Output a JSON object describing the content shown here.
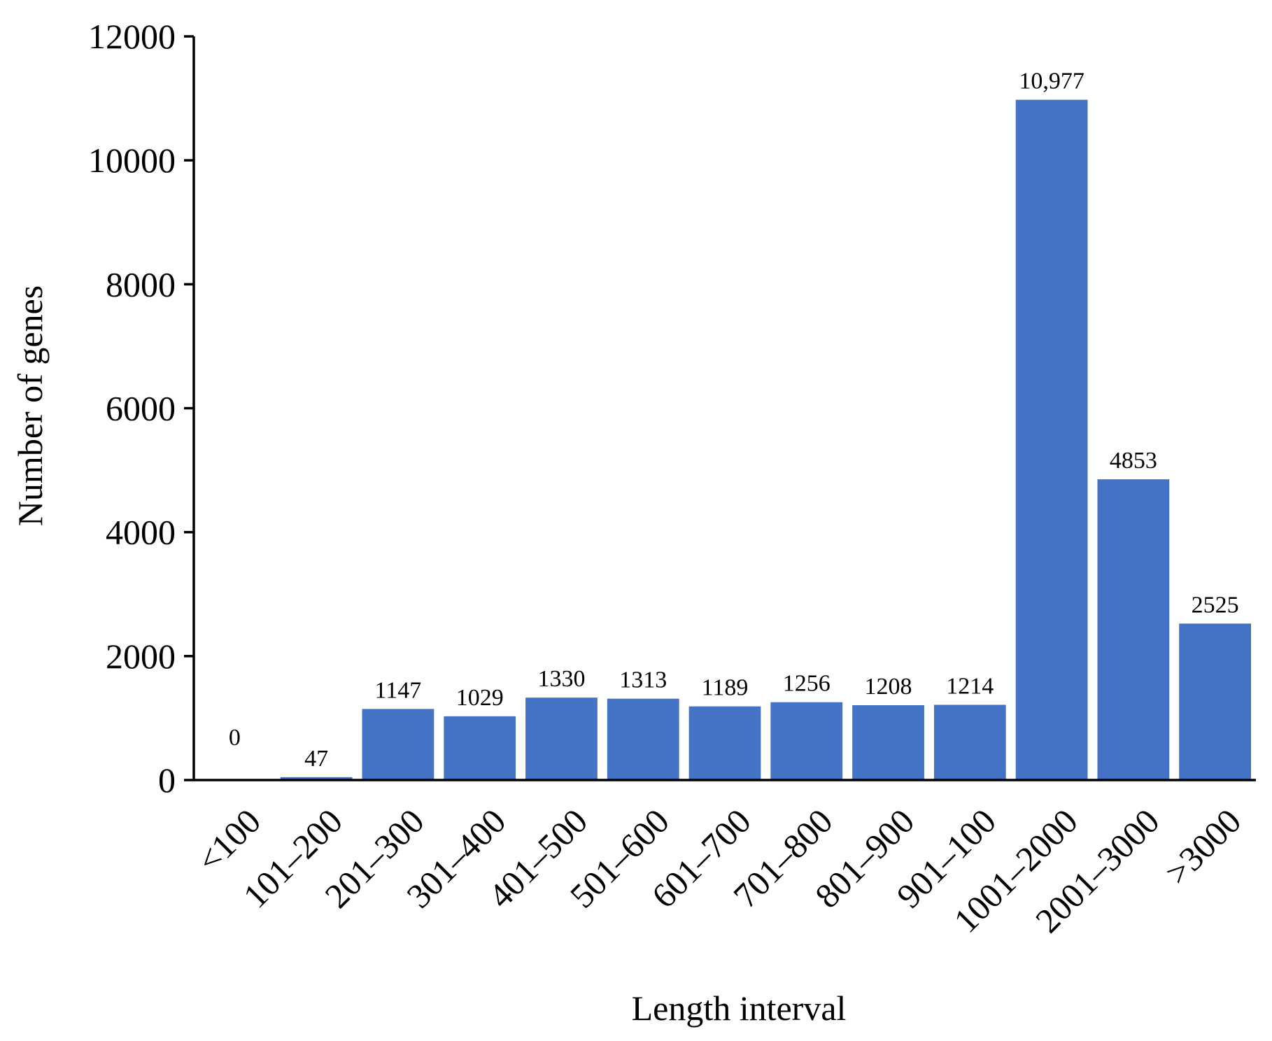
{
  "chart_data": {
    "type": "bar",
    "xlabel": "Length interval",
    "ylabel": "Number of genes",
    "ylim": [
      0,
      12000
    ],
    "yticks": [
      "0",
      "2000",
      "4000",
      "6000",
      "8000",
      "10000",
      "12000"
    ],
    "grid": false,
    "legend": "none",
    "bar_color": "#4472C4",
    "categories": [
      "<100",
      "101–200",
      "201–300",
      "301–400",
      "401–500",
      "501–600",
      "601–700",
      "701–800",
      "801–900",
      "901–100",
      "1001–2000",
      "2001–3000",
      ">3000"
    ],
    "values": [
      0,
      47,
      1147,
      1029,
      1330,
      1313,
      1189,
      1256,
      1208,
      1214,
      10977,
      4853,
      2525
    ],
    "data_labels": [
      "0",
      "47",
      "1147",
      "1029",
      "1330",
      "1313",
      "1189",
      "1256",
      "1208",
      "1214",
      "10,977",
      "4853",
      "2525"
    ]
  }
}
